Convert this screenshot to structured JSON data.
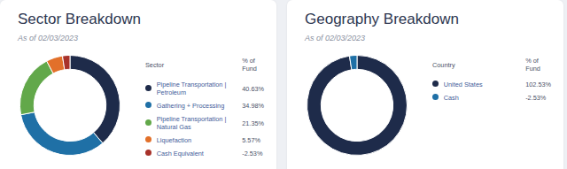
{
  "chart_data": [
    {
      "type": "doughnut",
      "title": "Sector Breakdown",
      "subtitle": "As of 02/03/2023",
      "legend": "right",
      "legend_headers": [
        "Sector",
        "% of Fund"
      ],
      "categories": [
        "Pipeline Transportation | Petroleum",
        "Gathering + Processing",
        "Pipeline Transportation | Natural Gas",
        "Liquefaction",
        "Cash Equivalent"
      ],
      "values": [
        40.63,
        34.98,
        21.35,
        5.57,
        -2.53
      ],
      "value_labels": [
        "40.63%",
        "34.98%",
        "21.35%",
        "5.57%",
        "-2.53%"
      ],
      "colors": [
        "#1e2b4a",
        "#1f70a6",
        "#62a84a",
        "#e2702a",
        "#a8322a"
      ]
    },
    {
      "type": "doughnut",
      "title": "Geography Breakdown",
      "subtitle": "As of 02/03/2023",
      "legend": "right",
      "legend_headers": [
        "Country",
        "% of Fund"
      ],
      "categories": [
        "United States",
        "Cash"
      ],
      "values": [
        102.53,
        -2.53
      ],
      "value_labels": [
        "102.53%",
        "-2.53%"
      ],
      "colors": [
        "#1e2b4a",
        "#1f70a6"
      ]
    }
  ]
}
